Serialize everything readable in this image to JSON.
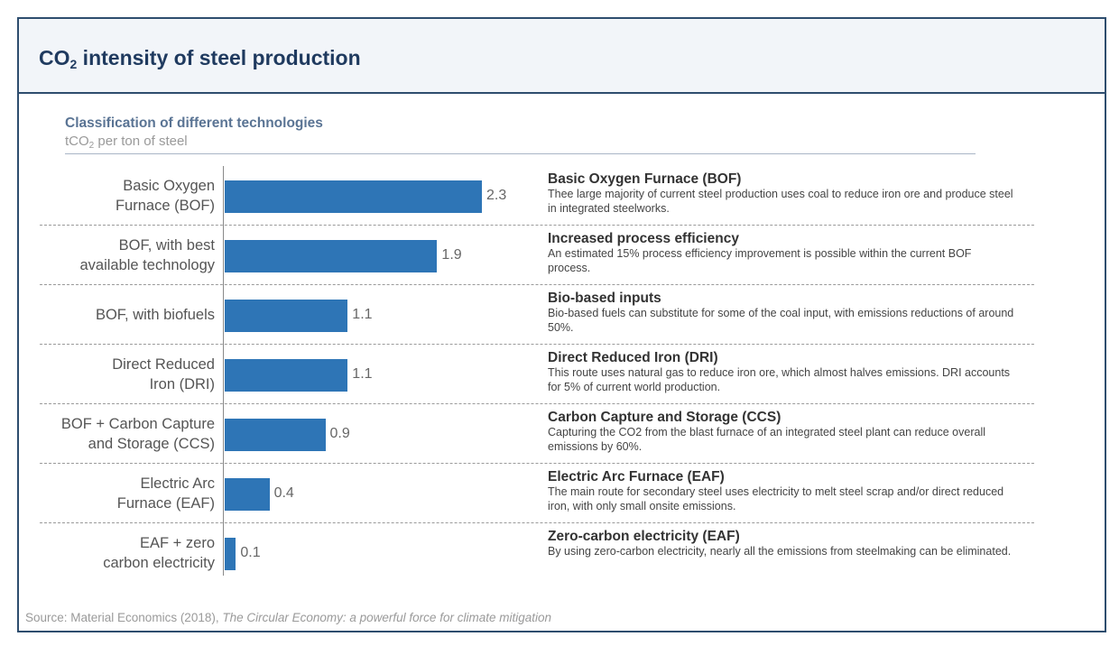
{
  "header": {
    "title_main": "CO",
    "title_sub": "2",
    "title_rest": " intensity of steel production"
  },
  "chart_header": {
    "subtitle": "Classification of different technologies",
    "unit_prefix": "tCO",
    "unit_sub": "2",
    "unit_rest": " per ton of steel"
  },
  "chart_data": {
    "type": "bar",
    "orientation": "horizontal",
    "categories": [
      "Basic Oxygen\nFurnace (BOF)",
      "BOF, with best\navailable technology",
      "BOF, with biofuels",
      "Direct Reduced\nIron (DRI)",
      "BOF + Carbon Capture\nand Storage (CCS)",
      "Electric Arc\nFurnace (EAF)",
      "EAF + zero\ncarbon electricity"
    ],
    "values": [
      2.3,
      1.9,
      1.1,
      1.1,
      0.9,
      0.4,
      0.1
    ],
    "value_labels": [
      "2.3",
      "1.9",
      "1.1",
      "1.1",
      "0.9",
      "0.4",
      "0.1"
    ],
    "xlim": [
      0,
      2.5
    ],
    "bar_color": "#2e75b6"
  },
  "descriptions": [
    {
      "heading": "Basic Oxygen Furnace (BOF)",
      "text": "Thee large majority of current steel production uses coal to reduce iron ore and produce steel in integrated steelworks."
    },
    {
      "heading": "Increased process efficiency",
      "text": "An estimated 15% process efficiency improvement is possible within the current BOF process."
    },
    {
      "heading": "Bio-based inputs",
      "text": "Bio-based fuels can substitute for some of the coal input, with emissions reductions of around 50%."
    },
    {
      "heading": "Direct Reduced Iron (DRI)",
      "text": "This route uses natural gas to reduce iron ore, which almost halves emissions. DRI accounts for 5% of current world production."
    },
    {
      "heading": "Carbon Capture and Storage (CCS)",
      "text": "Capturing the CO2 from the blast furnace of an integrated steel plant can reduce overall emissions by 60%."
    },
    {
      "heading": "Electric Arc Furnace (EAF)",
      "text": "The main route for secondary steel uses electricity to melt steel scrap and/or direct reduced iron, with only small onsite emissions."
    },
    {
      "heading": "Zero-carbon electricity (EAF)",
      "text": "By using zero-carbon electricity, nearly all the emissions from steelmaking can be eliminated."
    }
  ],
  "source": {
    "prefix": "Source: Material Economics  (2018), ",
    "italic": "The Circular Economy: a powerful force for climate mitigation"
  },
  "colors": {
    "frame": "#2e4d6e",
    "title": "#1f3a5f",
    "subtitle": "#5a7494",
    "header_bg": "#f2f5f9"
  }
}
